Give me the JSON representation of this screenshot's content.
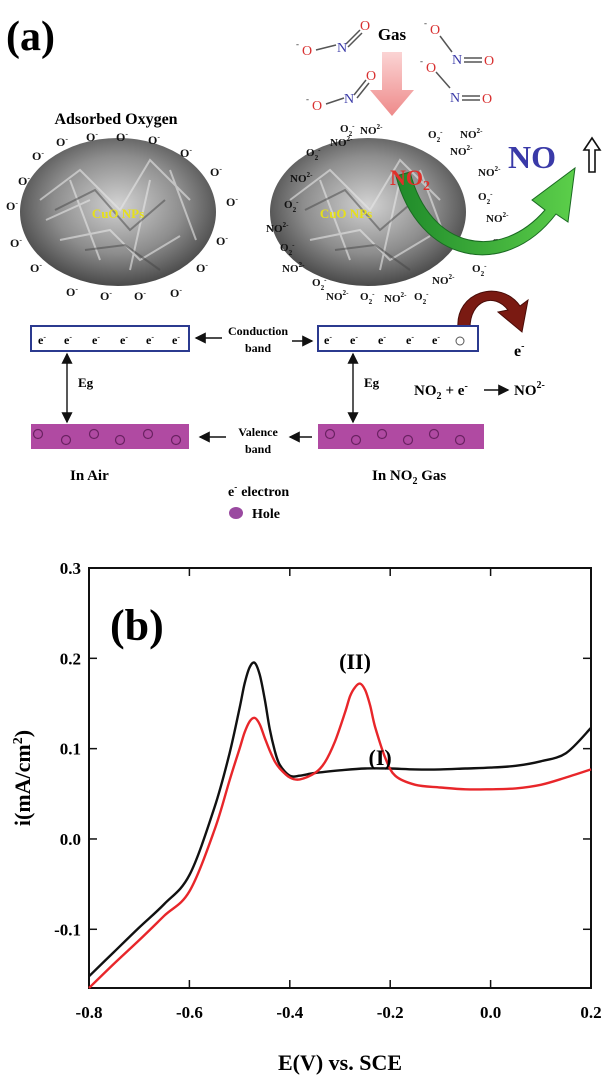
{
  "panel_a": {
    "label": "(a)",
    "gas_label": "Gas",
    "adsorbed_title": "Adsorbed Oxygen",
    "cuo_label": "CuO NPs",
    "no2_label": "NO",
    "no2_sub": "2",
    "no_label": "NO",
    "electron_out": "e",
    "conduction_label_1": "Conduction",
    "conduction_label_2": "band",
    "valence_label_1": "Valence",
    "valence_label_2": "band",
    "eg_label": "Eg",
    "reaction_no2": "NO",
    "reaction_sub": "2",
    "reaction_plus": "+ e",
    "reaction_product": "NO",
    "reaction_product_sup": "2-",
    "in_air": "In Air",
    "in_no2_prefix": "In NO",
    "in_no2_sub": "2",
    "in_no2_suffix": " Gas",
    "legend_electron": "electron",
    "legend_e": "e",
    "legend_hole": "Hole",
    "o_minus": "O",
    "o2_minus": "O",
    "no2_minus": "NO",
    "molecule_o": "O",
    "molecule_n": "N",
    "colors": {
      "band_border": "#2b3a8f",
      "valence_fill": "#b04aa2",
      "hole_fill": "#9a4aa0",
      "no_blue": "#3a3aa8",
      "no2_red": "#e0302a",
      "green_arrow": "#3aa83a",
      "dark_red_arrow": "#7a1a12",
      "molecule_red": "#d83030",
      "gas_arrow": "#f4a6a6"
    }
  },
  "chart_data": {
    "type": "line",
    "label": "(b)",
    "xlabel": "E(V) vs. SCE",
    "ylabel": "i(mA/cm",
    "ylabel_sup": "2",
    "ylabel_close": ")",
    "xlim": [
      -0.8,
      0.2
    ],
    "ylim": [
      -0.165,
      0.3
    ],
    "x_ticks": [
      -0.8,
      -0.6,
      -0.4,
      -0.2,
      0.0,
      0.2
    ],
    "x_tick_labels": [
      "-0.8",
      "-0.6",
      "-0.4",
      "-0.2",
      "0.0",
      "0.2"
    ],
    "y_ticks": [
      -0.1,
      0.0,
      0.1,
      0.2,
      0.3
    ],
    "y_tick_labels": [
      "-0.1",
      "0.0",
      "0.1",
      "0.2",
      "0.3"
    ],
    "series": [
      {
        "name": "(I)",
        "color": "#111111",
        "x": [
          -0.8,
          -0.75,
          -0.7,
          -0.65,
          -0.6,
          -0.55,
          -0.52,
          -0.5,
          -0.49,
          -0.48,
          -0.47,
          -0.46,
          -0.45,
          -0.44,
          -0.43,
          -0.42,
          -0.4,
          -0.38,
          -0.35,
          -0.3,
          -0.25,
          -0.2,
          -0.15,
          -0.1,
          -0.05,
          0.0,
          0.05,
          0.1,
          0.15,
          0.2
        ],
        "y": [
          -0.152,
          -0.125,
          -0.098,
          -0.072,
          -0.04,
          0.035,
          0.095,
          0.145,
          0.172,
          0.19,
          0.195,
          0.182,
          0.155,
          0.122,
          0.098,
          0.082,
          0.07,
          0.07,
          0.073,
          0.076,
          0.078,
          0.078,
          0.077,
          0.077,
          0.078,
          0.079,
          0.081,
          0.086,
          0.095,
          0.123
        ]
      },
      {
        "name": "(II)",
        "color": "#e8262a",
        "x": [
          -0.8,
          -0.75,
          -0.7,
          -0.65,
          -0.6,
          -0.55,
          -0.52,
          -0.5,
          -0.49,
          -0.48,
          -0.47,
          -0.46,
          -0.45,
          -0.44,
          -0.43,
          -0.42,
          -0.4,
          -0.38,
          -0.35,
          -0.33,
          -0.31,
          -0.29,
          -0.28,
          -0.27,
          -0.26,
          -0.25,
          -0.24,
          -0.23,
          -0.21,
          -0.19,
          -0.15,
          -0.1,
          -0.05,
          0.0,
          0.05,
          0.1,
          0.15,
          0.2
        ],
        "y": [
          -0.165,
          -0.138,
          -0.112,
          -0.085,
          -0.058,
          0.01,
          0.065,
          0.1,
          0.118,
          0.13,
          0.134,
          0.127,
          0.112,
          0.098,
          0.086,
          0.078,
          0.068,
          0.066,
          0.073,
          0.085,
          0.108,
          0.14,
          0.158,
          0.168,
          0.172,
          0.165,
          0.148,
          0.124,
          0.09,
          0.07,
          0.06,
          0.057,
          0.055,
          0.055,
          0.056,
          0.06,
          0.068,
          0.077
        ]
      }
    ],
    "annotations": [
      {
        "text": "(I)",
        "x": -0.22,
        "y": 0.082
      },
      {
        "text": "(II)",
        "x": -0.27,
        "y": 0.188
      }
    ]
  }
}
